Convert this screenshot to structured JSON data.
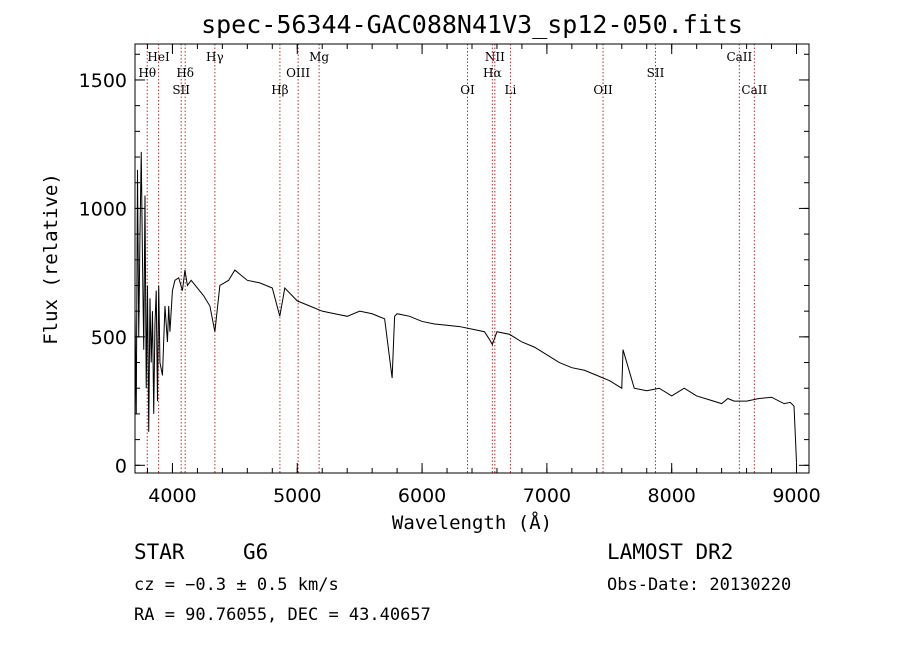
{
  "chart_data": {
    "type": "line",
    "title": "spec-56344-GAC088N41V3_sp12-050.fits",
    "xlabel": "Wavelength (Å)",
    "ylabel": "Flux (relative)",
    "xlim": [
      3700,
      9100
    ],
    "ylim": [
      -30,
      1640
    ],
    "x_ticks": [
      4000,
      5000,
      6000,
      7000,
      8000,
      9000
    ],
    "y_ticks": [
      0,
      500,
      1000,
      1500
    ],
    "x_minor_step": 200,
    "y_minor_step": 100,
    "lines": [
      {
        "label": "HeI",
        "x": 3889,
        "row": 0
      },
      {
        "label": "Hθ",
        "x": 3798,
        "row": 1
      },
      {
        "label": "Hδ",
        "x": 4102,
        "row": 1
      },
      {
        "label": "SII",
        "x": 4070,
        "row": 2
      },
      {
        "label": "Hγ",
        "x": 4340,
        "row": 0
      },
      {
        "label": "Hβ",
        "x": 4861,
        "row": 2
      },
      {
        "label": "OIII",
        "x": 5007,
        "row": 1
      },
      {
        "label": "Mg",
        "x": 5175,
        "row": 0
      },
      {
        "label": "OI",
        "x": 6364,
        "row": 2
      },
      {
        "label": "NII",
        "x": 6583,
        "row": 0
      },
      {
        "label": "Hα",
        "x": 6563,
        "row": 1
      },
      {
        "label": "Li",
        "x": 6708,
        "row": 2
      },
      {
        "label": "OII",
        "x": 7450,
        "row": 2
      },
      {
        "label": "SII",
        "x": 7870,
        "row": 1
      },
      {
        "label": "CaII",
        "x": 8542,
        "row": 0
      },
      {
        "label": "CaII",
        "x": 8662,
        "row": 2
      }
    ],
    "series": [
      {
        "x": [
          3700,
          3710,
          3720,
          3730,
          3740,
          3750,
          3760,
          3770,
          3780,
          3790,
          3800,
          3810,
          3820,
          3830,
          3840,
          3850,
          3860,
          3870,
          3880,
          3890,
          3900,
          3920,
          3940,
          3960,
          3970,
          3980,
          4000,
          4020,
          4050,
          4080,
          4100,
          4120,
          4150,
          4200,
          4250,
          4300,
          4340,
          4380,
          4450,
          4500,
          4550,
          4600,
          4700,
          4800,
          4860,
          4900,
          5000,
          5100,
          5200,
          5300,
          5400,
          5500,
          5600,
          5700,
          5760,
          5780,
          5800,
          5900,
          6000,
          6100,
          6200,
          6300,
          6400,
          6500,
          6540,
          6563,
          6600,
          6700,
          6800,
          6900,
          7000,
          7100,
          7200,
          7300,
          7400,
          7500,
          7600,
          7610,
          7700,
          7800,
          7900,
          8000,
          8100,
          8200,
          8300,
          8400,
          8450,
          8500,
          8600,
          8700,
          8800,
          8900,
          8950,
          8980,
          9000
        ],
        "y": [
          600,
          200,
          1150,
          500,
          900,
          1220,
          800,
          450,
          1050,
          300,
          700,
          130,
          650,
          400,
          600,
          200,
          550,
          680,
          250,
          700,
          400,
          350,
          620,
          480,
          620,
          520,
          680,
          720,
          730,
          680,
          760,
          700,
          720,
          690,
          660,
          620,
          520,
          700,
          720,
          760,
          740,
          720,
          710,
          690,
          580,
          690,
          640,
          620,
          600,
          590,
          580,
          600,
          590,
          570,
          340,
          580,
          590,
          580,
          560,
          550,
          545,
          540,
          530,
          520,
          490,
          470,
          520,
          510,
          480,
          460,
          430,
          400,
          380,
          370,
          350,
          330,
          300,
          450,
          300,
          290,
          300,
          270,
          300,
          270,
          255,
          240,
          260,
          250,
          250,
          260,
          265,
          240,
          245,
          230,
          10
        ]
      }
    ]
  },
  "footer": {
    "object_type": "STAR",
    "subclass": "G6",
    "cz": "cz = −0.3 ± 0.5 km/s",
    "coords": "RA =  90.76055, DEC =  43.40657",
    "survey": "LAMOST DR2",
    "obs_date": "Obs-Date: 20130220"
  }
}
